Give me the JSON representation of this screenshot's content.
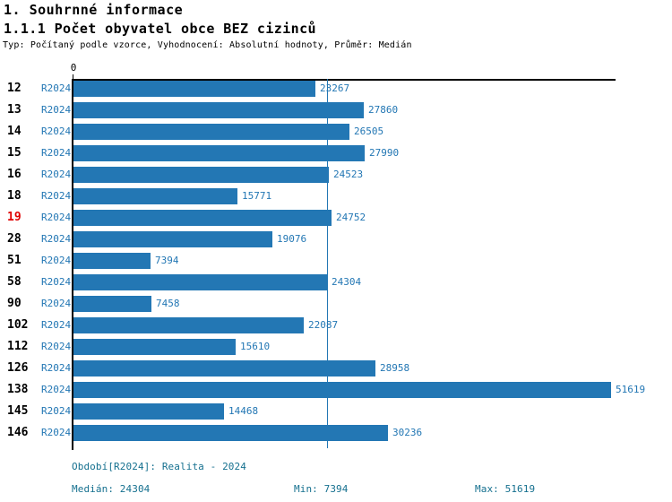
{
  "header": {
    "title": "1. Souhrnné informace",
    "subtitle": "1.1.1 Počet obyvatel obce BEZ cizinců",
    "meta": "Typ: Počítaný podle vzorce, Vyhodnocení: Absolutní hodnoty, Průměr: Medián"
  },
  "chart_data": {
    "type": "bar",
    "orientation": "horizontal",
    "series_label": "R2024",
    "axis_zero_label": "0",
    "categories": [
      "12",
      "13",
      "14",
      "15",
      "16",
      "18",
      "19",
      "28",
      "51",
      "58",
      "90",
      "102",
      "112",
      "126",
      "138",
      "145",
      "146"
    ],
    "values": [
      23267,
      27860,
      26505,
      27990,
      24523,
      15771,
      24752,
      19076,
      7394,
      24304,
      7458,
      22087,
      15610,
      28958,
      51619,
      14468,
      30236
    ],
    "highlighted_category": "19",
    "median": 24304,
    "min": 7394,
    "max": 51619,
    "xlim": [
      0,
      51619
    ],
    "grid": false,
    "value_labels_shown": true,
    "colors": {
      "bar": "#2377B4",
      "label": "#2377B4",
      "median_line": "#2377B4",
      "highlight_label": "#E00000",
      "footer": "#15708F"
    }
  },
  "footer": {
    "period": "Období[R2024]: Realita - 2024",
    "median": "Medián: 24304",
    "min": "Min: 7394",
    "max": "Max: 51619"
  }
}
